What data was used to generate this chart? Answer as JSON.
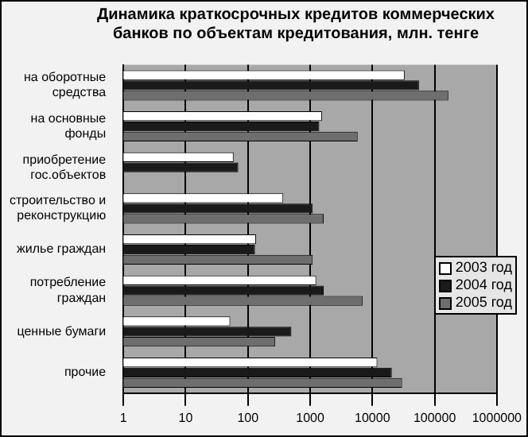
{
  "chart_data": {
    "type": "bar",
    "orientation": "horizontal",
    "title": "Динамика краткосрочных кредитов коммерческих банков по объектам кредитования,  млн. тенге",
    "categories": [
      "на оборотные средства",
      "на основные фонды",
      "приобретение гос.объектов",
      "строительство и реконструкцию",
      "жилье граждан",
      "потребление граждан",
      "ценные бумаги",
      "прочие"
    ],
    "series": [
      {
        "name": "2003 год",
        "color": "#ffffff",
        "values": [
          33000,
          1550,
          59,
          370,
          135,
          1250,
          52,
          12000
        ]
      },
      {
        "name": "2004 год",
        "color": "#1a1a1a",
        "values": [
          56000,
          1400,
          70,
          1100,
          130,
          1650,
          500,
          20500
        ]
      },
      {
        "name": "2005 год",
        "color": "#6e6e6e",
        "values": [
          166000,
          5800,
          null,
          1650,
          1100,
          7000,
          275,
          30000
        ]
      }
    ],
    "log": "x",
    "xlim": [
      1,
      1000000
    ],
    "xticks": [
      1,
      10,
      100,
      1000,
      10000,
      100000,
      1000000
    ],
    "grid": "x",
    "legend": "right"
  }
}
